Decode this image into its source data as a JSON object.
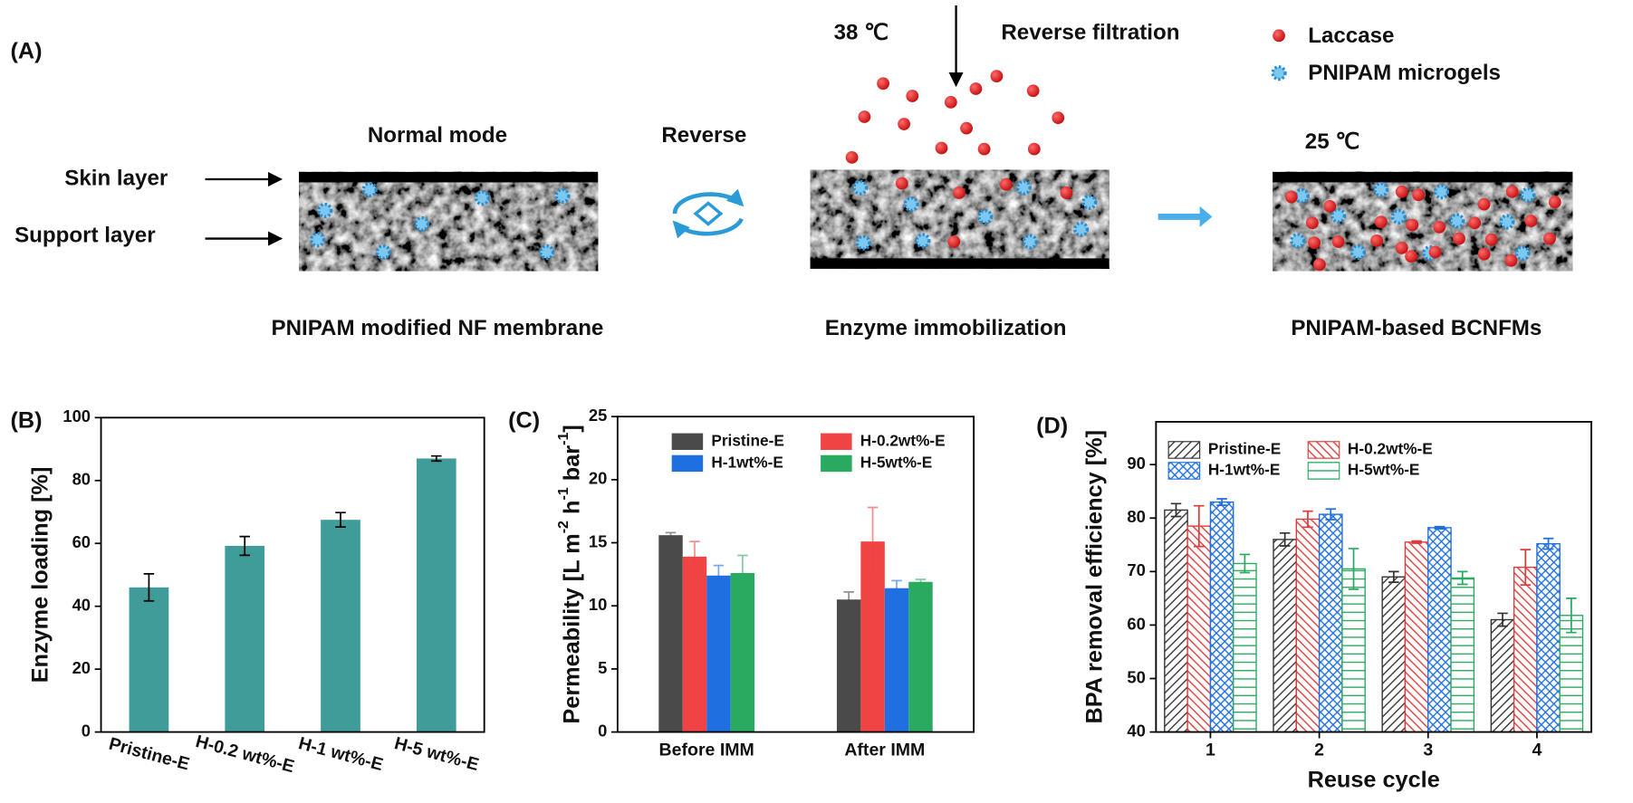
{
  "diagram": {
    "panel_label": "(A)",
    "skin_layer": "Skin layer",
    "support_layer": "Support layer",
    "normal_mode": "Normal mode",
    "membrane_caption": "PNIPAM modified NF membrane",
    "reverse": "Reverse",
    "temperature_filtration": "38 ℃",
    "reverse_filtration": "Reverse filtration",
    "immobilization_caption": "Enzyme immobilization",
    "legend": [
      "Laccase",
      "PNIPAM microgels"
    ],
    "temperature_final": "25 ℃",
    "final_caption": "PNIPAM-based BCNFMs"
  },
  "chart_data": [
    {
      "type": "bar",
      "panel_label": "(B)",
      "ylabel": "Enzyme loading [%]",
      "categories": [
        "Pristine-E",
        "H-0.2 wt%-E",
        "H-1 wt%-E",
        "H-5 wt%-E"
      ],
      "values": [
        46,
        59.2,
        67.5,
        87
      ],
      "errors": [
        4.3,
        3,
        2.3,
        0.8
      ],
      "color": "#3f9c98",
      "ylim": [
        0,
        100
      ],
      "yticks": [
        0,
        20,
        40,
        60,
        80,
        100
      ]
    },
    {
      "type": "bar",
      "panel_label": "(C)",
      "ylabel": [
        "Permeability [L m",
        "-2",
        " h",
        "-1",
        " bar",
        "-1",
        "]"
      ],
      "categories": [
        "Before IMM",
        "After IMM"
      ],
      "series": [
        {
          "name": "Pristine-E",
          "color": "#4a4a4a",
          "values": [
            15.6,
            10.5
          ],
          "errors": [
            0.2,
            0.6
          ]
        },
        {
          "name": "H-0.2wt%-E",
          "color": "#f04343",
          "values": [
            13.9,
            15.1
          ],
          "errors": [
            1.2,
            2.7
          ]
        },
        {
          "name": "H-1wt%-E",
          "color": "#1f6fe0",
          "values": [
            12.4,
            11.4
          ],
          "errors": [
            0.8,
            0.6
          ]
        },
        {
          "name": "H-5wt%-E",
          "color": "#2aaa60",
          "values": [
            12.6,
            11.9
          ],
          "errors": [
            1.4,
            0.2
          ]
        }
      ],
      "ylim": [
        0,
        25
      ],
      "yticks": [
        0,
        5,
        10,
        15,
        20,
        25
      ]
    },
    {
      "type": "bar",
      "panel_label": "(D)",
      "ylabel": "BPA removal efficiency [%]",
      "xlabel": "Reuse cycle",
      "categories": [
        "1",
        "2",
        "3",
        "4"
      ],
      "series": [
        {
          "name": "Pristine-E",
          "color": "#333333",
          "hatch": "/",
          "values": [
            81.5,
            76,
            69,
            61
          ],
          "errors": [
            1.2,
            1.2,
            1,
            1.2
          ]
        },
        {
          "name": "H-0.2wt%-E",
          "color": "#e03a3a",
          "hatch": "\\",
          "values": [
            78.5,
            79.8,
            75.5,
            70.8
          ],
          "errors": [
            3.8,
            1.5,
            0.2,
            3.3
          ]
        },
        {
          "name": "H-1wt%-E",
          "color": "#1f6fe0",
          "hatch": "x",
          "values": [
            83,
            80.7,
            78.2,
            75.2
          ],
          "errors": [
            0.6,
            1,
            0.2,
            1
          ]
        },
        {
          "name": "H-5wt%-E",
          "color": "#2aaa60",
          "hatch": "-",
          "values": [
            71.5,
            70.5,
            68.8,
            61.8
          ],
          "errors": [
            1.7,
            3.8,
            1.2,
            3.2
          ]
        }
      ],
      "ylim": [
        40,
        98
      ],
      "yticks": [
        40,
        50,
        60,
        70,
        80,
        90
      ]
    }
  ]
}
